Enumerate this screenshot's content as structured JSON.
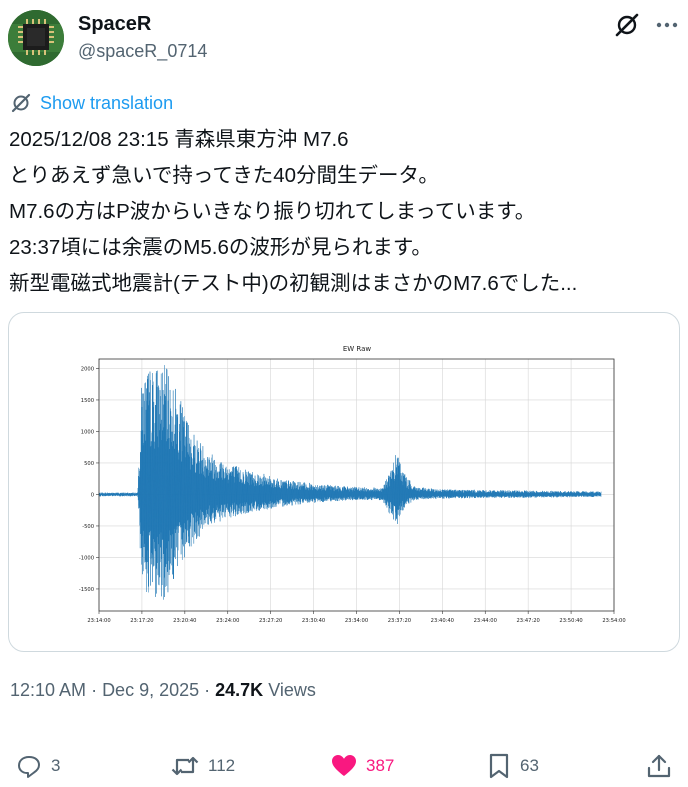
{
  "author": {
    "name": "SpaceR",
    "handle": "@spaceR_0714"
  },
  "icons": {
    "grok": "grok-icon",
    "more": "more-icon",
    "translate": "translate-icon",
    "reply": "reply-icon",
    "retweet": "retweet-icon",
    "like": "heart-icon",
    "bookmark": "bookmark-icon",
    "share": "share-icon"
  },
  "translate_label": "Show translation",
  "tweet_text": "2025/12/08 23:15 青森県東方沖 M7.6\nとりあえず急いで持ってきた40分間生データ。\nM7.6の方はP波からいきなり振り切れてしまっています。\n23:37頃には余震のM5.6の波形が見られます。\n新型電磁式地震計(テスト中)の初観測はまさかのM7.6でした...",
  "meta": {
    "time": "12:10 AM",
    "date": "Dec 9, 2025",
    "views_count": "24.7K",
    "views_label": "Views",
    "separator": "·"
  },
  "actions": {
    "replies": "3",
    "retweets": "112",
    "likes": "387",
    "bookmarks": "63"
  },
  "colors": {
    "accent": "#1d9bf0",
    "like": "#f91880",
    "trace": "#1f77b4",
    "secondary_text": "#536471"
  },
  "chart_data": {
    "type": "line",
    "title": "EW Raw",
    "xlabel": "",
    "ylabel": "",
    "x_ticks": [
      "23:14:00",
      "23:17:20",
      "23:20:40",
      "23:24:00",
      "23:27:20",
      "23:30:40",
      "23:34:00",
      "23:37:20",
      "23:40:40",
      "23:44:00",
      "23:47:20",
      "23:50:40",
      "23:54:00"
    ],
    "y_ticks": [
      2000,
      1500,
      1000,
      500,
      0,
      -500,
      -1000,
      -1500
    ],
    "xlim": [
      "23:14:00",
      "23:54:00"
    ],
    "ylim": [
      -1850,
      2150
    ],
    "grid": true,
    "series": [
      {
        "envelope": {
          "time": [
            "23:14:00",
            "23:16:00",
            "23:17:00",
            "23:17:20",
            "23:17:50",
            "23:18:30",
            "23:19:00",
            "23:19:30",
            "23:20:00",
            "23:20:40",
            "23:21:30",
            "23:22:30",
            "23:24:00",
            "23:26:00",
            "23:28:00",
            "23:30:00",
            "23:32:00",
            "23:34:00",
            "23:36:00",
            "23:36:40",
            "23:37:10",
            "23:37:30",
            "23:38:00",
            "23:38:40",
            "23:40:00",
            "23:44:00",
            "23:48:00",
            "23:52:00",
            "23:53:00"
          ],
          "upper": [
            30,
            30,
            30,
            1900,
            2000,
            2050,
            2100,
            1900,
            1700,
            1300,
            950,
            700,
            500,
            380,
            250,
            190,
            150,
            120,
            110,
            400,
            700,
            450,
            250,
            120,
            90,
            70,
            60,
            50,
            50
          ],
          "lower": [
            -30,
            -30,
            -30,
            -1450,
            -1600,
            -1650,
            -1700,
            -1500,
            -1300,
            -1000,
            -750,
            -500,
            -400,
            -280,
            -200,
            -150,
            -110,
            -90,
            -90,
            -350,
            -480,
            -300,
            -160,
            -90,
            -70,
            -60,
            -50,
            -40,
            -40
          ]
        }
      }
    ]
  }
}
